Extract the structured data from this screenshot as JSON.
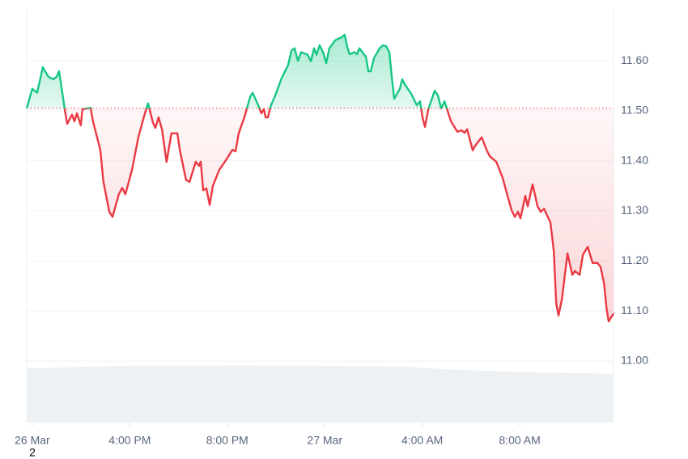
{
  "chart_data": {
    "type": "line",
    "x": [
      11.77,
      12,
      12.2,
      12.43,
      12.66,
      12.86,
      13,
      13.1,
      13.33,
      13.43,
      13.63,
      13.73,
      13.83,
      13.99,
      14.06,
      14.39,
      14.49,
      14.79,
      14.92,
      15.16,
      15.29,
      15.55,
      15.69,
      15.82,
      16.09,
      16.35,
      16.62,
      16.75,
      16.95,
      17.05,
      17.18,
      17.32,
      17.51,
      17.71,
      17.95,
      18.05,
      18.31,
      18.45,
      18.71,
      18.84,
      18.91,
      19.01,
      19.14,
      19.28,
      19.41,
      19.67,
      19.94,
      20.21,
      20.34,
      20.47,
      20.7,
      20.94,
      21.04,
      21.3,
      21.4,
      21.5,
      21.57,
      21.67,
      21.77,
      21.97,
      22.23,
      22.5,
      22.63,
      22.76,
      22.9,
      23.03,
      23.3,
      23.43,
      23.56,
      23.66,
      23.79,
      23.93,
      24.06,
      24.19,
      24.43,
      24.69,
      24.82,
      24.92,
      25.02,
      25.22,
      25.32,
      25.42,
      25.69,
      25.79,
      25.89,
      26.02,
      26.25,
      26.39,
      26.52,
      26.65,
      26.75,
      26.85,
      27.08,
      27.18,
      27.28,
      27.55,
      27.78,
      27.91,
      28.01,
      28.11,
      28.25,
      28.51,
      28.64,
      28.78,
      28.91,
      29.18,
      29.44,
      29.61,
      29.74,
      29.84,
      30.07,
      30.17,
      30.44,
      30.64,
      30.77,
      31.04,
      31.3,
      31.44,
      31.67,
      31.8,
      31.93,
      32.03,
      32.23,
      32.33,
      32.53,
      32.73,
      32.86,
      33,
      33.26,
      33.4,
      33.5,
      33.59,
      33.73,
      33.96,
      34.16,
      34.26,
      34.46,
      34.59,
      34.79,
      34.99,
      35.19,
      35.32,
      35.46,
      35.56,
      35.65,
      35.85
    ],
    "values": [
      11.505,
      11.544,
      11.536,
      11.587,
      11.568,
      11.563,
      11.568,
      11.579,
      11.503,
      11.474,
      11.492,
      11.479,
      11.495,
      11.471,
      11.503,
      11.506,
      11.479,
      11.422,
      11.358,
      11.298,
      11.288,
      11.333,
      11.346,
      11.333,
      11.382,
      11.447,
      11.495,
      11.515,
      11.476,
      11.466,
      11.487,
      11.463,
      11.398,
      11.455,
      11.455,
      11.422,
      11.362,
      11.358,
      11.398,
      11.39,
      11.398,
      11.341,
      11.345,
      11.312,
      11.35,
      11.382,
      11.401,
      11.422,
      11.419,
      11.455,
      11.487,
      11.528,
      11.536,
      11.508,
      11.495,
      11.503,
      11.487,
      11.487,
      11.508,
      11.531,
      11.565,
      11.592,
      11.62,
      11.625,
      11.6,
      11.617,
      11.612,
      11.599,
      11.625,
      11.612,
      11.631,
      11.617,
      11.595,
      11.625,
      11.641,
      11.647,
      11.652,
      11.628,
      11.613,
      11.617,
      11.613,
      11.625,
      11.608,
      11.579,
      11.579,
      11.605,
      11.625,
      11.631,
      11.629,
      11.617,
      11.568,
      11.524,
      11.544,
      11.563,
      11.553,
      11.534,
      11.511,
      11.519,
      11.487,
      11.468,
      11.503,
      11.54,
      11.531,
      11.505,
      11.519,
      11.479,
      11.458,
      11.461,
      11.456,
      11.463,
      11.421,
      11.43,
      11.447,
      11.422,
      11.409,
      11.398,
      11.366,
      11.341,
      11.301,
      11.288,
      11.298,
      11.285,
      11.33,
      11.309,
      11.353,
      11.309,
      11.298,
      11.304,
      11.277,
      11.22,
      11.115,
      11.091,
      11.123,
      11.215,
      11.172,
      11.18,
      11.172,
      11.212,
      11.228,
      11.196,
      11.196,
      11.188,
      11.155,
      11.106,
      11.079,
      11.095
    ],
    "baseline": 11.505,
    "up_color": "#16c784",
    "down_color": "#ea3943",
    "xlim": [
      11.77,
      35.85
    ],
    "xticks": [
      {
        "value": 12,
        "label": "26 Mar"
      },
      {
        "value": 16,
        "label": "4:00 PM"
      },
      {
        "value": 20,
        "label": "8:00 PM"
      },
      {
        "value": 24,
        "label": "27 Mar"
      },
      {
        "value": 28,
        "label": "4:00 AM"
      },
      {
        "value": 32,
        "label": "8:00 AM"
      }
    ],
    "ylim": [
      10.877,
      11.702
    ],
    "yticks": [
      {
        "value": 11.6,
        "label": "11.60"
      },
      {
        "value": 11.5,
        "label": "11.50"
      },
      {
        "value": 11.4,
        "label": "11.40"
      },
      {
        "value": 11.3,
        "label": "11.30"
      },
      {
        "value": 11.2,
        "label": "11.20"
      },
      {
        "value": 11.1,
        "label": "11.10"
      },
      {
        "value": 11.0,
        "label": "11.00"
      }
    ],
    "grid": true,
    "volume": {
      "x": [
        11.77,
        15.65,
        20.64,
        23.96,
        27.28,
        28.94,
        32.27,
        35.85
      ],
      "values": [
        96,
        100,
        101,
        100,
        99,
        94,
        89,
        86
      ],
      "vlim": [
        0,
        110
      ],
      "color": "#eef1f4"
    },
    "footnote": "2"
  }
}
